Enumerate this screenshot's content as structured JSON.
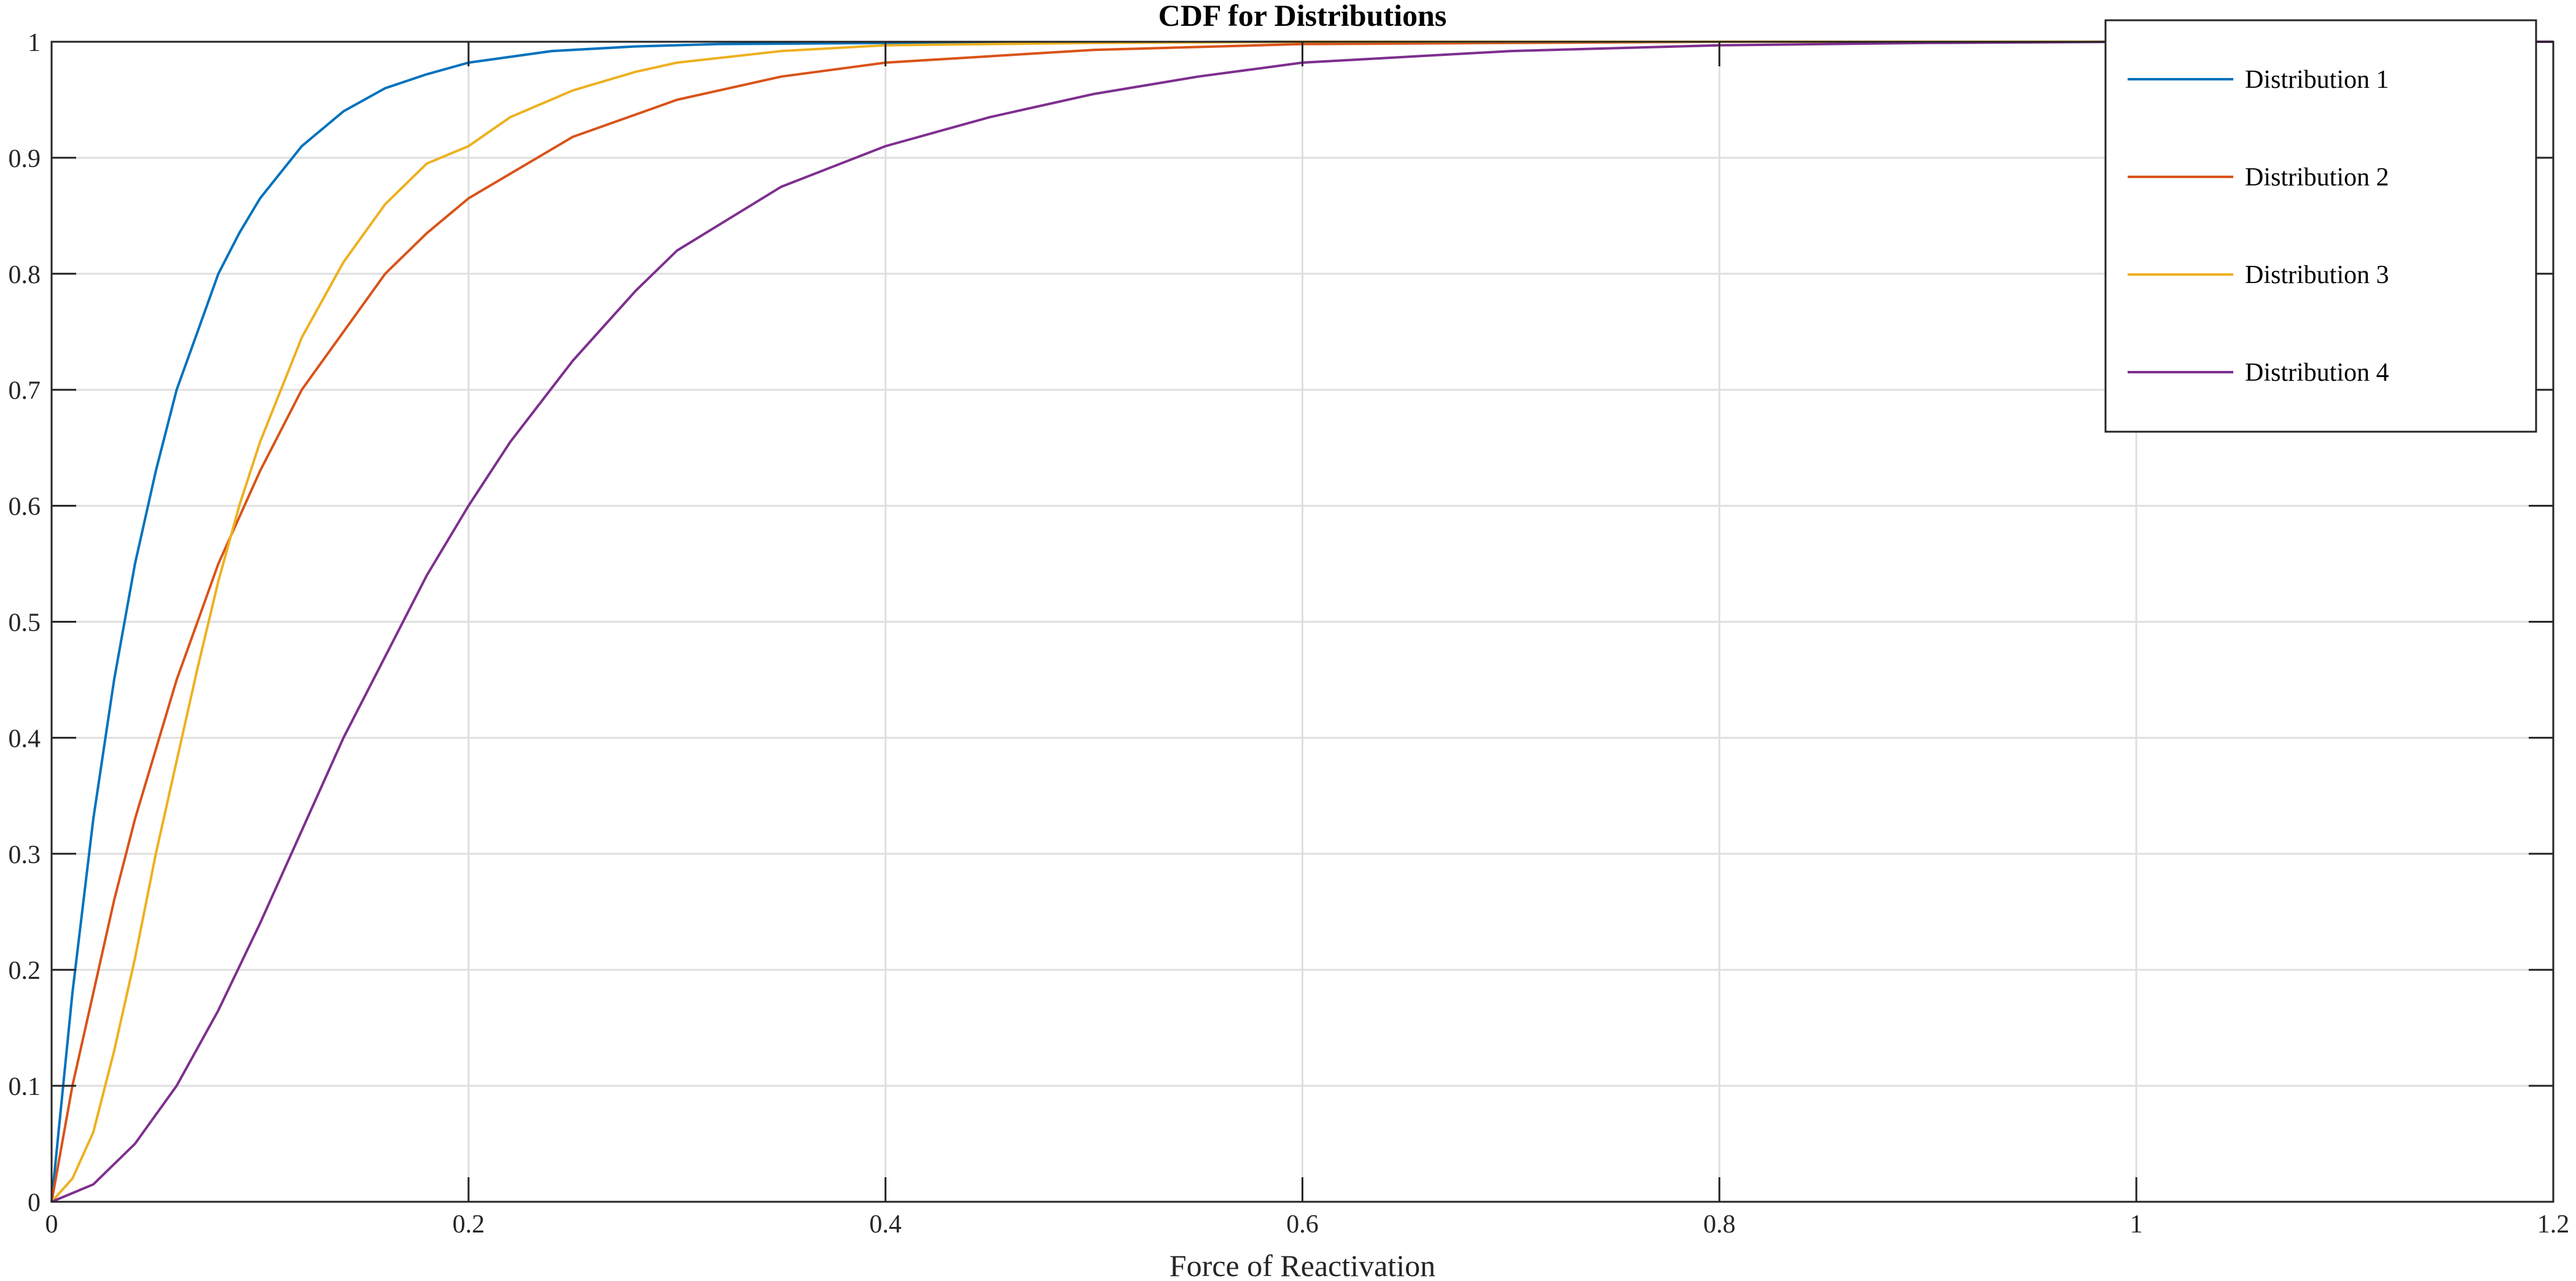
{
  "chart_data": {
    "type": "line",
    "title": "CDF for Distributions",
    "xlabel": "Force of Reactivation",
    "ylabel": "",
    "xlim": [
      0,
      1.2
    ],
    "ylim": [
      0,
      1
    ],
    "x_ticks": [
      "0",
      "0.2",
      "0.4",
      "0.6",
      "0.8",
      "1",
      "1.2"
    ],
    "y_ticks": [
      "0",
      "0.1",
      "0.2",
      "0.3",
      "0.4",
      "0.5",
      "0.6",
      "0.7",
      "0.8",
      "0.9",
      "1"
    ],
    "grid": true,
    "legend_position": "top-right",
    "series": [
      {
        "name": "Distribution 1",
        "color": "#0072BD",
        "points": [
          [
            0,
            0
          ],
          [
            0.01,
            0.18
          ],
          [
            0.02,
            0.33
          ],
          [
            0.03,
            0.45
          ],
          [
            0.04,
            0.55
          ],
          [
            0.05,
            0.63
          ],
          [
            0.06,
            0.7
          ],
          [
            0.07,
            0.75
          ],
          [
            0.08,
            0.8
          ],
          [
            0.09,
            0.835
          ],
          [
            0.1,
            0.865
          ],
          [
            0.12,
            0.91
          ],
          [
            0.14,
            0.94
          ],
          [
            0.16,
            0.96
          ],
          [
            0.18,
            0.972
          ],
          [
            0.2,
            0.982
          ],
          [
            0.24,
            0.992
          ],
          [
            0.28,
            0.996
          ],
          [
            0.32,
            0.998
          ],
          [
            0.4,
            0.999
          ],
          [
            0.6,
            1
          ],
          [
            1.2,
            1
          ]
        ]
      },
      {
        "name": "Distribution 2",
        "color": "#D95319",
        "points": [
          [
            0,
            0
          ],
          [
            0.01,
            0.1
          ],
          [
            0.02,
            0.18
          ],
          [
            0.03,
            0.26
          ],
          [
            0.04,
            0.33
          ],
          [
            0.05,
            0.39
          ],
          [
            0.06,
            0.45
          ],
          [
            0.07,
            0.5
          ],
          [
            0.08,
            0.55
          ],
          [
            0.1,
            0.63
          ],
          [
            0.12,
            0.7
          ],
          [
            0.14,
            0.75
          ],
          [
            0.16,
            0.8
          ],
          [
            0.18,
            0.835
          ],
          [
            0.2,
            0.865
          ],
          [
            0.25,
            0.918
          ],
          [
            0.3,
            0.95
          ],
          [
            0.35,
            0.97
          ],
          [
            0.4,
            0.982
          ],
          [
            0.5,
            0.993
          ],
          [
            0.6,
            0.998
          ],
          [
            0.7,
            0.999
          ],
          [
            0.8,
            1
          ],
          [
            1.2,
            1
          ]
        ]
      },
      {
        "name": "Distribution 3",
        "color": "#EDB120",
        "points": [
          [
            0,
            0
          ],
          [
            0.01,
            0.02
          ],
          [
            0.02,
            0.06
          ],
          [
            0.03,
            0.13
          ],
          [
            0.04,
            0.21
          ],
          [
            0.05,
            0.3
          ],
          [
            0.06,
            0.38
          ],
          [
            0.07,
            0.46
          ],
          [
            0.08,
            0.535
          ],
          [
            0.09,
            0.6
          ],
          [
            0.1,
            0.655
          ],
          [
            0.12,
            0.745
          ],
          [
            0.14,
            0.81
          ],
          [
            0.16,
            0.86
          ],
          [
            0.18,
            0.895
          ],
          [
            0.2,
            0.91
          ],
          [
            0.22,
            0.935
          ],
          [
            0.25,
            0.958
          ],
          [
            0.28,
            0.974
          ],
          [
            0.3,
            0.982
          ],
          [
            0.35,
            0.992
          ],
          [
            0.4,
            0.997
          ],
          [
            0.5,
            0.999
          ],
          [
            0.6,
            1
          ],
          [
            1.2,
            1
          ]
        ]
      },
      {
        "name": "Distribution 4",
        "color": "#7E2F8E",
        "points": [
          [
            0,
            0
          ],
          [
            0.02,
            0.015
          ],
          [
            0.04,
            0.05
          ],
          [
            0.06,
            0.1
          ],
          [
            0.08,
            0.165
          ],
          [
            0.1,
            0.24
          ],
          [
            0.12,
            0.32
          ],
          [
            0.14,
            0.4
          ],
          [
            0.16,
            0.47
          ],
          [
            0.18,
            0.54
          ],
          [
            0.2,
            0.6
          ],
          [
            0.22,
            0.655
          ],
          [
            0.25,
            0.725
          ],
          [
            0.28,
            0.785
          ],
          [
            0.3,
            0.82
          ],
          [
            0.35,
            0.875
          ],
          [
            0.4,
            0.91
          ],
          [
            0.45,
            0.935
          ],
          [
            0.5,
            0.955
          ],
          [
            0.55,
            0.97
          ],
          [
            0.6,
            0.982
          ],
          [
            0.7,
            0.992
          ],
          [
            0.8,
            0.997
          ],
          [
            0.9,
            0.999
          ],
          [
            1.0,
            1
          ],
          [
            1.2,
            1
          ]
        ]
      }
    ]
  }
}
